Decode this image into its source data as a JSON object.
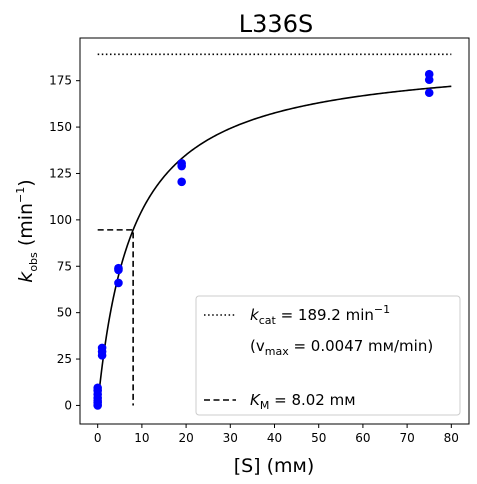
{
  "chart_data": {
    "type": "scatter",
    "title": "L336S",
    "xlabel": {
      "prefix": "[S] (",
      "unit": "mм",
      "suffix": ")"
    },
    "ylabel": {
      "k": "k",
      "sub": "obs",
      "unit": " (min",
      "exp": "−1",
      "close": ")"
    },
    "xlim": [
      -4,
      84
    ],
    "ylim": [
      -10,
      198
    ],
    "x_ticks": [
      0,
      10,
      20,
      30,
      40,
      50,
      60,
      70,
      80
    ],
    "y_ticks": [
      0,
      25,
      50,
      75,
      100,
      125,
      150,
      175
    ],
    "grid": false,
    "legend_position": "lower-right",
    "points": {
      "name": "observed",
      "color": "#0000ff",
      "x": [
        0,
        0,
        0,
        0,
        0,
        0,
        0,
        1,
        1,
        1,
        4.7,
        4.7,
        4.7,
        19,
        19,
        19,
        75,
        75,
        75
      ],
      "y": [
        0,
        1.5,
        2.5,
        4,
        6,
        8,
        9.5,
        27,
        29,
        31,
        66,
        73,
        74,
        120.5,
        129,
        130.5,
        168.5,
        175.5,
        178.5
      ]
    },
    "fit": {
      "type": "michaelis-menten",
      "kcat": 189.2,
      "km": 8.02,
      "x_range": [
        0,
        80
      ],
      "color": "#000000"
    },
    "kcat_line": {
      "y": 189.2,
      "x_range": [
        0,
        80
      ],
      "style": "dotted"
    },
    "km_line": {
      "x": 8.02,
      "y": 94.6,
      "x_start": 0,
      "style": "dashed"
    },
    "legend": [
      {
        "style": "dotted",
        "sym": "k",
        "sub": "cat",
        "text": " = 189.2 min",
        "exp": "−1"
      },
      {
        "style": "none",
        "text": "(v",
        "sub": "max",
        "tail": " = 0.0047 mм/min)"
      },
      {
        "style": "dashed",
        "sym": "K",
        "sub": "M",
        "text": " = 8.02 mм"
      }
    ]
  }
}
